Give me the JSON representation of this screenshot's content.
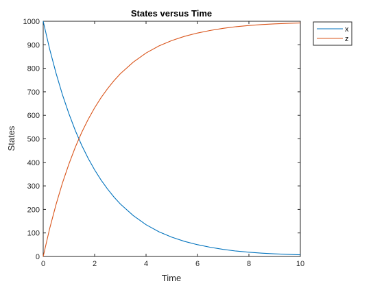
{
  "chart_data": {
    "type": "line",
    "title": "States versus Time",
    "xlabel": "Time",
    "ylabel": "States",
    "xlim": [
      0,
      10
    ],
    "ylim": [
      0,
      1000
    ],
    "xticks": [
      "0",
      "2",
      "4",
      "6",
      "8",
      "10"
    ],
    "yticks": [
      "0",
      "100",
      "200",
      "300",
      "400",
      "500",
      "600",
      "700",
      "800",
      "900",
      "1000"
    ],
    "grid": false,
    "legend_position": "top-right outside",
    "x": [
      0,
      0.25,
      0.5,
      0.75,
      1,
      1.25,
      1.5,
      1.75,
      2,
      2.25,
      2.5,
      2.75,
      3,
      3.5,
      4,
      4.5,
      5,
      5.5,
      6,
      6.5,
      7,
      7.5,
      8,
      8.5,
      9,
      9.5,
      10
    ],
    "series": [
      {
        "name": "x",
        "color": "#0072BD",
        "values": [
          1000,
          882,
          779,
          687,
          607,
          535,
          472,
          417,
          368,
          325,
          287,
          253,
          223,
          174,
          135,
          105,
          82,
          64,
          50,
          39,
          30,
          23,
          18,
          14,
          11,
          9,
          7
        ]
      },
      {
        "name": "z",
        "color": "#D95319",
        "values": [
          0,
          118,
          221,
          313,
          393,
          465,
          528,
          583,
          632,
          675,
          713,
          747,
          777,
          826,
          865,
          895,
          918,
          936,
          950,
          961,
          970,
          977,
          982,
          986,
          989,
          991,
          993
        ]
      }
    ]
  }
}
